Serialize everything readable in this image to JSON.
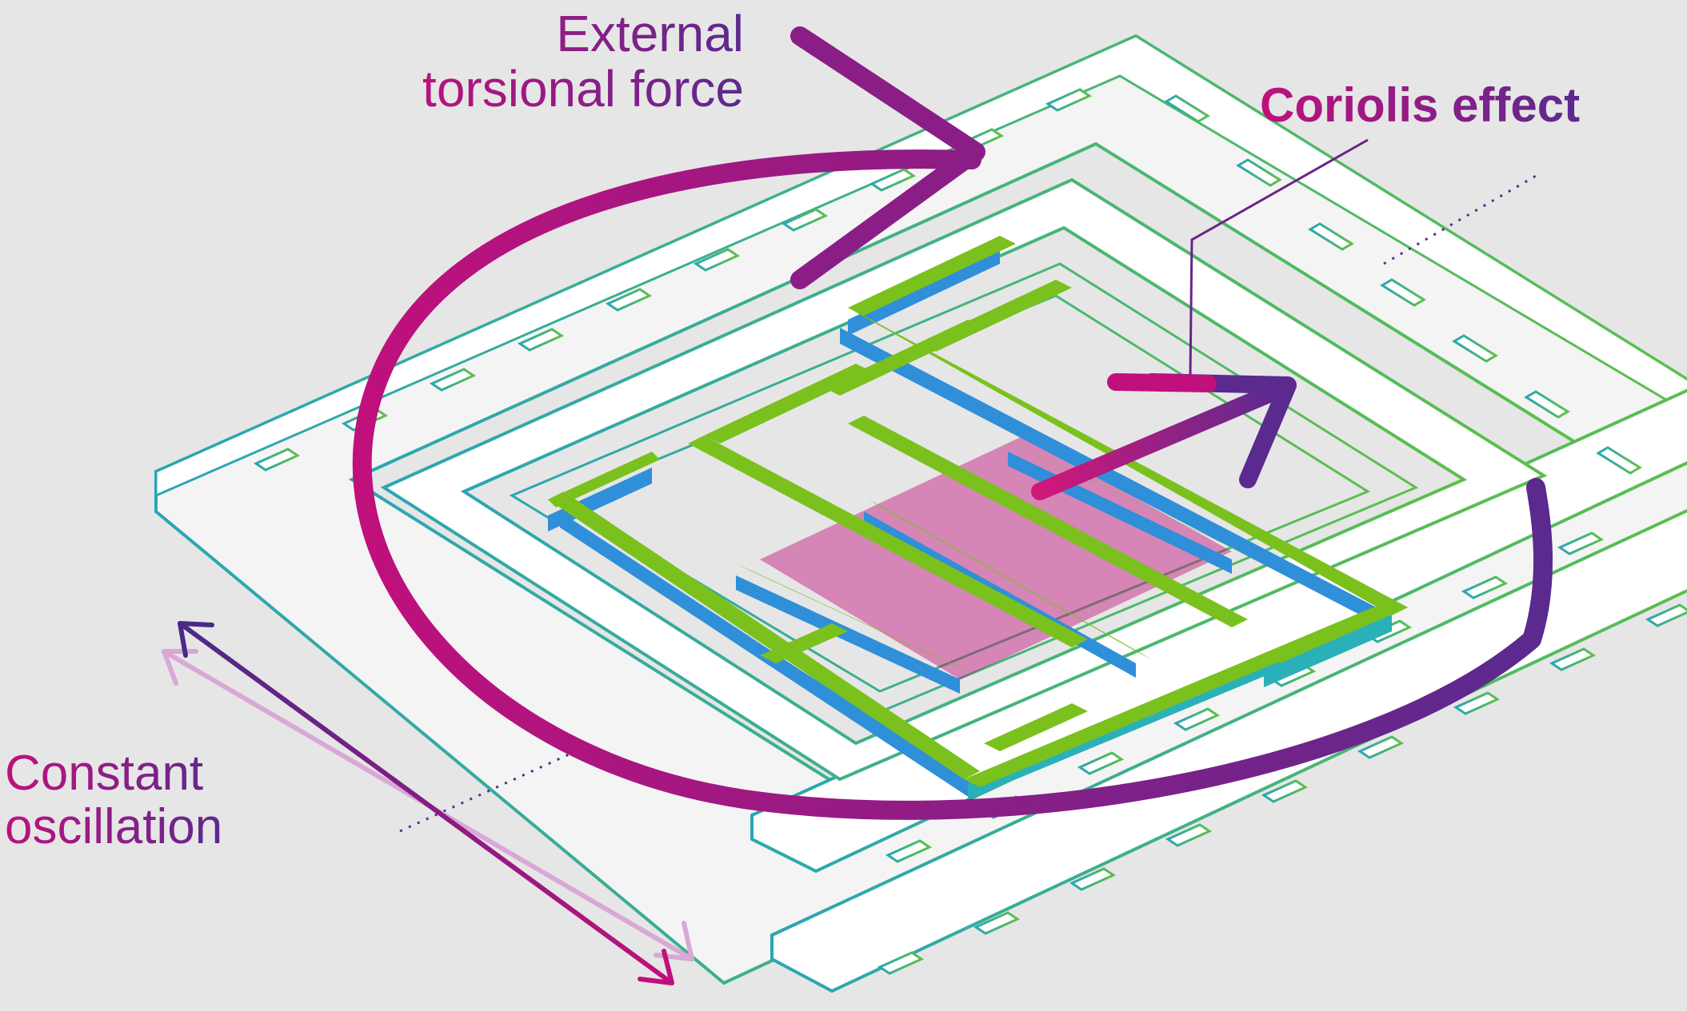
{
  "labels": {
    "external_line1": "External",
    "external_line2": "torsional force",
    "coriolis": "Coriolis effect",
    "oscillation_line1": "Constant",
    "oscillation_line2": "oscillation"
  },
  "colors": {
    "background": "#e6e6e6",
    "frame_white": "#ffffff",
    "outline_teal": "#2aa6b4",
    "outline_green": "#5cc04a",
    "beam_green": "#7ac11e",
    "beam_blue": "#2f8fd8",
    "beam_teal": "#2ab0b8",
    "magenta": "#c0107c",
    "purple": "#5a2a8e",
    "ghost": "#d4a6d2"
  },
  "icons": {
    "torsion_arrow": "curved-arrow",
    "coriolis_arrow": "straight-arrow",
    "oscillation_arrow": "double-headed-arrow"
  }
}
